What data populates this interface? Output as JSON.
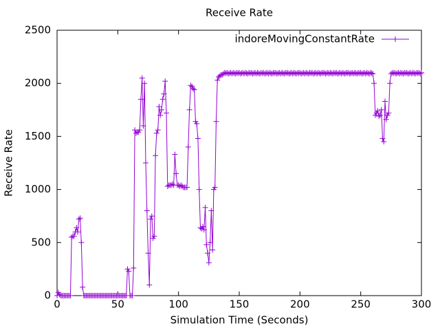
{
  "chart_data": {
    "type": "line",
    "title": "Receive Rate",
    "x_label": "Simulation Time (Seconds)",
    "y_label": "Receive Rate",
    "xlim": [
      0,
      300
    ],
    "xticks": [
      0,
      50,
      100,
      150,
      200,
      250,
      300
    ],
    "ylim": [
      0,
      2500
    ],
    "yticks": [
      0,
      500,
      1000,
      1500,
      2000,
      2500
    ],
    "legend": "top-right",
    "series": [
      {
        "name": "indoreMovingConstantRate",
        "color": "#9400d3",
        "x": [
          0,
          1,
          2,
          3,
          4,
          5,
          6,
          7,
          8,
          9,
          10,
          11,
          12,
          13,
          14,
          15,
          16,
          17,
          18,
          19,
          20,
          21,
          22,
          23,
          24,
          25,
          26,
          27,
          28,
          29,
          30,
          31,
          32,
          33,
          34,
          35,
          36,
          37,
          38,
          39,
          40,
          41,
          42,
          43,
          44,
          45,
          46,
          47,
          48,
          49,
          50,
          51,
          52,
          53,
          54,
          55,
          56,
          57,
          58,
          59,
          60,
          61,
          62,
          63,
          64,
          65,
          66,
          67,
          68,
          69,
          70,
          71,
          72,
          73,
          74,
          75,
          76,
          77,
          78,
          79,
          80,
          81,
          82,
          83,
          84,
          85,
          86,
          87,
          88,
          89,
          90,
          91,
          92,
          93,
          94,
          95,
          96,
          97,
          98,
          99,
          100,
          101,
          102,
          103,
          104,
          105,
          106,
          107,
          108,
          109,
          110,
          111,
          112,
          113,
          114,
          115,
          116,
          117,
          118,
          119,
          120,
          121,
          122,
          123,
          124,
          125,
          126,
          127,
          128,
          129,
          130,
          131,
          132,
          133,
          134,
          135,
          136,
          137,
          138,
          139,
          140,
          141,
          142,
          143,
          144,
          145,
          146,
          147,
          148,
          149,
          150,
          151,
          152,
          153,
          154,
          155,
          156,
          157,
          158,
          159,
          160,
          161,
          162,
          163,
          164,
          165,
          166,
          167,
          168,
          169,
          170,
          171,
          172,
          173,
          174,
          175,
          176,
          177,
          178,
          179,
          180,
          181,
          182,
          183,
          184,
          185,
          186,
          187,
          188,
          189,
          190,
          191,
          192,
          193,
          194,
          195,
          196,
          197,
          198,
          199,
          200,
          201,
          202,
          203,
          204,
          205,
          206,
          207,
          208,
          209,
          210,
          211,
          212,
          213,
          214,
          215,
          216,
          217,
          218,
          219,
          220,
          221,
          222,
          223,
          224,
          225,
          226,
          227,
          228,
          229,
          230,
          231,
          232,
          233,
          234,
          235,
          236,
          237,
          238,
          239,
          240,
          241,
          242,
          243,
          244,
          245,
          246,
          247,
          248,
          249,
          250,
          251,
          252,
          253,
          254,
          255,
          256,
          257,
          258,
          259,
          260,
          261,
          262,
          263,
          264,
          265,
          266,
          267,
          268,
          269,
          270,
          271,
          272,
          273,
          274,
          275,
          276,
          277,
          278,
          279,
          280,
          281,
          282,
          283,
          284,
          285,
          286,
          287,
          288,
          289,
          290,
          291,
          292,
          293,
          294,
          295,
          296,
          297,
          298,
          299,
          300
        ],
        "values": [
          0,
          30,
          10,
          0,
          0,
          0,
          0,
          0,
          0,
          0,
          0,
          0,
          550,
          560,
          560,
          600,
          640,
          600,
          720,
          730,
          500,
          80,
          0,
          0,
          0,
          0,
          0,
          0,
          0,
          0,
          0,
          0,
          0,
          0,
          0,
          0,
          0,
          0,
          0,
          0,
          0,
          0,
          0,
          0,
          0,
          0,
          0,
          0,
          0,
          0,
          0,
          0,
          0,
          0,
          0,
          0,
          0,
          0,
          250,
          230,
          0,
          0,
          0,
          260,
          1560,
          1530,
          1540,
          1540,
          1560,
          1850,
          2050,
          1600,
          2000,
          1250,
          800,
          400,
          100,
          720,
          750,
          540,
          560,
          1320,
          1530,
          1560,
          1780,
          1700,
          1750,
          1850,
          1900,
          2020,
          1720,
          1030,
          1040,
          1040,
          1040,
          1050,
          1040,
          1330,
          1150,
          1040,
          1040,
          1030,
          1040,
          1030,
          1020,
          1020,
          1020,
          1020,
          1400,
          1750,
          1980,
          1970,
          1950,
          1940,
          1640,
          1620,
          1480,
          1000,
          640,
          630,
          650,
          620,
          830,
          480,
          400,
          310,
          500,
          800,
          430,
          1000,
          1020,
          1640,
          2030,
          2060,
          2070,
          2080,
          2080,
          2090,
          2100,
          2095,
          2100,
          2090,
          2095,
          2100,
          2090,
          2100,
          2095,
          2090,
          2100,
          2095,
          2100,
          2090,
          2095,
          2100,
          2090,
          2100,
          2095,
          2090,
          2100,
          2095,
          2100,
          2090,
          2095,
          2100,
          2090,
          2100,
          2095,
          2090,
          2100,
          2095,
          2100,
          2090,
          2095,
          2100,
          2090,
          2100,
          2095,
          2090,
          2100,
          2095,
          2100,
          2090,
          2095,
          2100,
          2090,
          2100,
          2095,
          2090,
          2100,
          2095,
          2100,
          2090,
          2095,
          2100,
          2090,
          2100,
          2095,
          2090,
          2100,
          2095,
          2100,
          2090,
          2095,
          2100,
          2090,
          2100,
          2095,
          2090,
          2100,
          2095,
          2100,
          2090,
          2095,
          2100,
          2090,
          2100,
          2095,
          2090,
          2100,
          2095,
          2100,
          2090,
          2095,
          2100,
          2090,
          2100,
          2095,
          2090,
          2100,
          2095,
          2100,
          2090,
          2095,
          2100,
          2090,
          2100,
          2095,
          2090,
          2100,
          2095,
          2100,
          2090,
          2095,
          2100,
          2090,
          2100,
          2095,
          2090,
          2100,
          2095,
          2100,
          2090,
          2095,
          2100,
          2090,
          2100,
          2095,
          2090,
          2100,
          2095,
          2090,
          2000,
          1700,
          1720,
          1740,
          1690,
          1700,
          1750,
          1480,
          1450,
          1830,
          1660,
          1700,
          1720,
          2000,
          2090,
          2100,
          2095,
          2100,
          2090,
          2095,
          2100,
          2090,
          2100,
          2095,
          2090,
          2100,
          2095,
          2100,
          2090,
          2095,
          2100,
          2090,
          2100,
          2095,
          2090,
          2100,
          2095,
          2100,
          2090,
          2100
        ]
      }
    ]
  }
}
